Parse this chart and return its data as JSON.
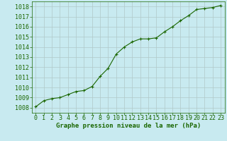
{
  "x": [
    0,
    1,
    2,
    3,
    4,
    5,
    6,
    7,
    8,
    9,
    10,
    11,
    12,
    13,
    14,
    15,
    16,
    17,
    18,
    19,
    20,
    21,
    22,
    23
  ],
  "y": [
    1008.1,
    1008.7,
    1008.9,
    1009.0,
    1009.3,
    1009.6,
    1009.7,
    1010.1,
    1011.1,
    1011.9,
    1013.3,
    1014.0,
    1014.5,
    1014.8,
    1014.8,
    1014.9,
    1015.5,
    1016.0,
    1016.6,
    1017.1,
    1017.7,
    1017.8,
    1017.9,
    1018.1
  ],
  "line_color": "#1a6600",
  "marker": "+",
  "bg_color": "#c8eaf0",
  "grid_color": "#b0c8c8",
  "xlabel": "Graphe pression niveau de la mer (hPa)",
  "tick_color": "#1a6600",
  "ylim": [
    1007.5,
    1018.5
  ],
  "xlim": [
    -0.5,
    23.5
  ],
  "yticks": [
    1008,
    1009,
    1010,
    1011,
    1012,
    1013,
    1014,
    1015,
    1016,
    1017,
    1018
  ],
  "xticks": [
    0,
    1,
    2,
    3,
    4,
    5,
    6,
    7,
    8,
    9,
    10,
    11,
    12,
    13,
    14,
    15,
    16,
    17,
    18,
    19,
    20,
    21,
    22,
    23
  ],
  "tick_fontsize": 6,
  "xlabel_fontsize": 6.5,
  "marker_size": 3,
  "line_width": 0.8
}
